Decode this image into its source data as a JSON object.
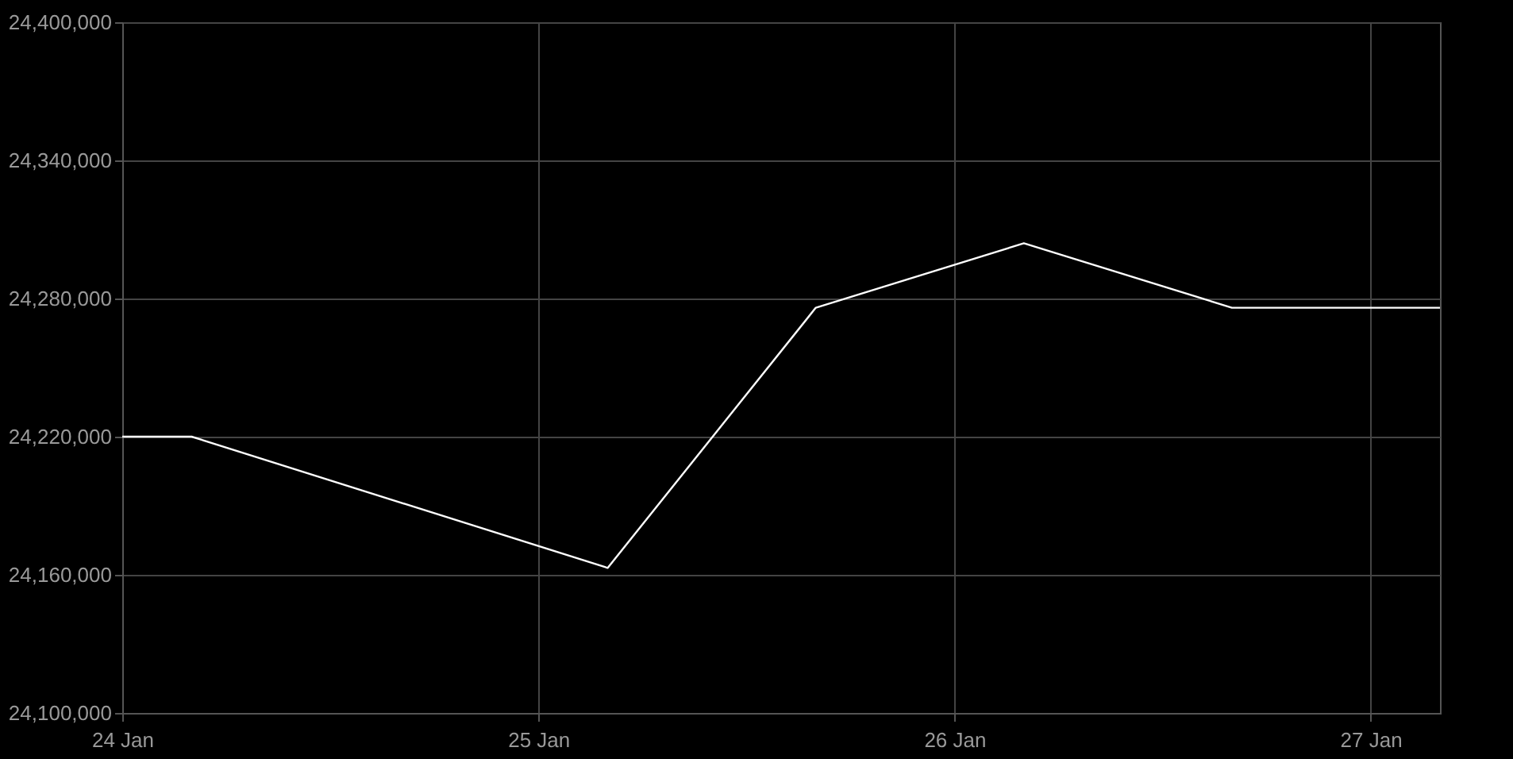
{
  "chart_data": {
    "type": "line",
    "x": [
      "--01-24T00:00",
      "--01-24T04:00",
      "--01-25T04:00",
      "--01-25T16:00",
      "--01-26T04:00",
      "--01-26T16:00",
      "--01-27T04:00"
    ],
    "series": [
      {
        "color": "#ffffff",
        "values": [
          24220000,
          24220000,
          24163000,
          24276000,
          24304000,
          24276000,
          24276000
        ]
      }
    ],
    "xlim": [
      "--01-24T00:00",
      "--01-27T04:00"
    ],
    "xticks": [
      {
        "value": "--01-24",
        "label": "24 Jan"
      },
      {
        "value": "--01-25",
        "label": "25 Jan"
      },
      {
        "value": "--01-26",
        "label": "26 Jan"
      },
      {
        "value": "--01-27",
        "label": "27 Jan"
      }
    ],
    "ylim": [
      24100000,
      24400000
    ],
    "yticks": [
      {
        "value": 24100000,
        "label": "24,100,000"
      },
      {
        "value": 24160000,
        "label": "24,160,000"
      },
      {
        "value": 24220000,
        "label": "24,220,000"
      },
      {
        "value": 24280000,
        "label": "24,280,000"
      },
      {
        "value": 24340000,
        "label": "24,340,000"
      },
      {
        "value": 24400000,
        "label": "24,400,000"
      }
    ],
    "grid": true,
    "legend": false,
    "marker": "none",
    "line_style": "solid"
  }
}
